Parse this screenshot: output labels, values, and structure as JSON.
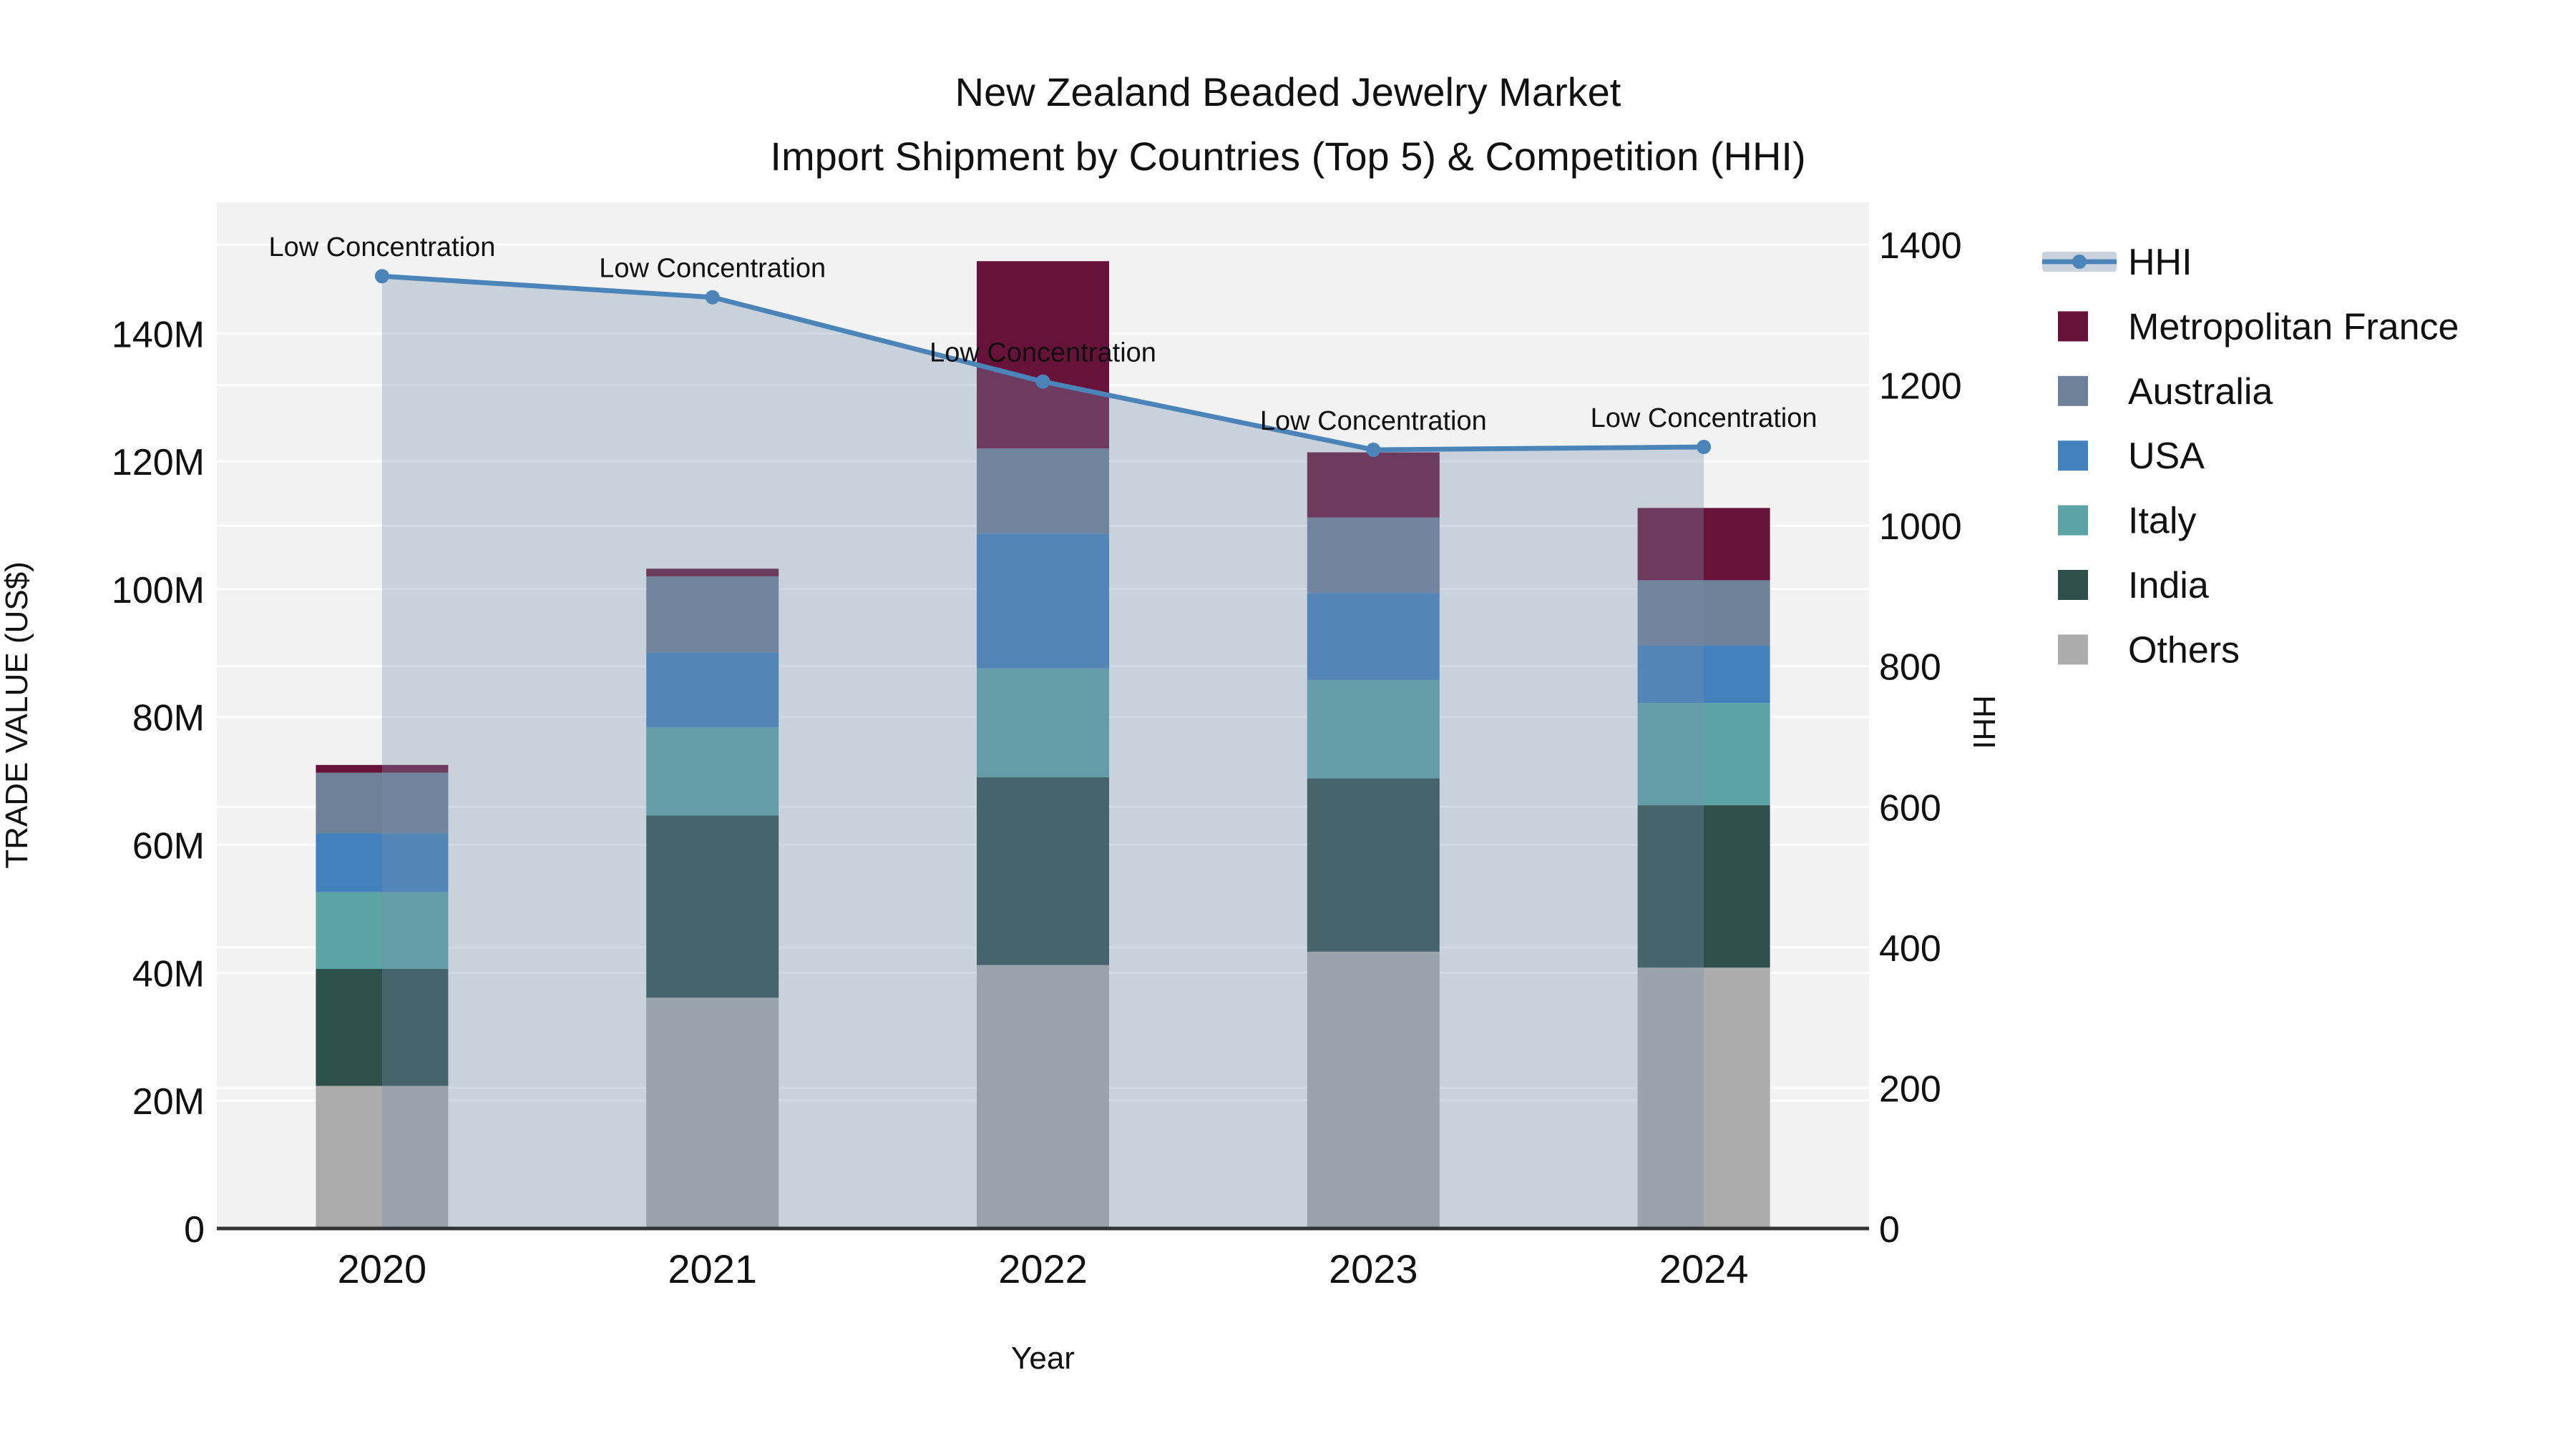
{
  "title": {
    "line1": "New Zealand Beaded Jewelry Market",
    "line2": "Import Shipment by Countries (Top 5) & Competition (HHI)"
  },
  "chart_data": {
    "type": "bar",
    "subtype": "stacked-bar-with-line",
    "categories": [
      "2020",
      "2021",
      "2022",
      "2023",
      "2024"
    ],
    "xlabel": "Year",
    "ylabel_left": "TRADE VALUE (US$)",
    "ylabel_right": "HHI",
    "left_axis": {
      "tick_labels": [
        "0",
        "20M",
        "40M",
        "60M",
        "80M",
        "100M",
        "120M",
        "140M"
      ],
      "tick_values_millions": [
        0,
        20,
        40,
        60,
        80,
        100,
        120,
        140
      ],
      "max_millions": 160.5,
      "grid": true
    },
    "right_axis": {
      "tick_labels": [
        "0",
        "200",
        "400",
        "600",
        "800",
        "1000",
        "1200",
        "1400"
      ],
      "tick_values": [
        0,
        200,
        400,
        600,
        800,
        1000,
        1200,
        1400
      ],
      "max": 1460,
      "grid": true
    },
    "bar_series_bottom_to_top": [
      {
        "name": "Others",
        "color": "#ACACAC",
        "values_millions": [
          22.3,
          36.1,
          41.2,
          43.3,
          40.8
        ]
      },
      {
        "name": "India",
        "color": "#2D504B",
        "values_millions": [
          18.3,
          28.5,
          29.4,
          27.1,
          25.4
        ]
      },
      {
        "name": "Italy",
        "color": "#5BA3A4",
        "values_millions": [
          12.0,
          13.8,
          17.0,
          15.4,
          16.0
        ]
      },
      {
        "name": "USA",
        "color": "#4381BC",
        "values_millions": [
          9.2,
          11.7,
          21.1,
          13.6,
          9.0
        ]
      },
      {
        "name": "Australia",
        "color": "#6F8198",
        "values_millions": [
          9.5,
          11.9,
          13.3,
          11.8,
          10.2
        ]
      },
      {
        "name": "Metropolitan France",
        "color": "#671238",
        "values_millions": [
          1.2,
          1.2,
          29.3,
          10.2,
          11.3
        ]
      }
    ],
    "bar_totals_millions": [
      72.5,
      103.2,
      151.3,
      121.4,
      112.7
    ],
    "line_series": {
      "name": "HHI",
      "values": [
        1355,
        1325,
        1205,
        1108,
        1112
      ],
      "line_color": "#4A84B8",
      "fill_color": "rgba(117,142,172,0.33)",
      "fill_between": [
        "2020",
        "2024"
      ]
    },
    "annotations": [
      {
        "category": "2020",
        "text": "Low Concentration"
      },
      {
        "category": "2021",
        "text": "Low Concentration"
      },
      {
        "category": "2022",
        "text": "Low Concentration"
      },
      {
        "category": "2023",
        "text": "Low Concentration"
      },
      {
        "category": "2024",
        "text": "Low Concentration"
      }
    ],
    "legend_order_top_to_bottom": [
      "HHI",
      "Metropolitan France",
      "Australia",
      "USA",
      "Italy",
      "India",
      "Others"
    ],
    "legend_position": "right",
    "style": {
      "plot_background": "#F2F2F2",
      "grid_color": "rgba(255,255,255,0.9)",
      "x_axis_line_color": "#333333",
      "text_color": "#111111"
    }
  }
}
